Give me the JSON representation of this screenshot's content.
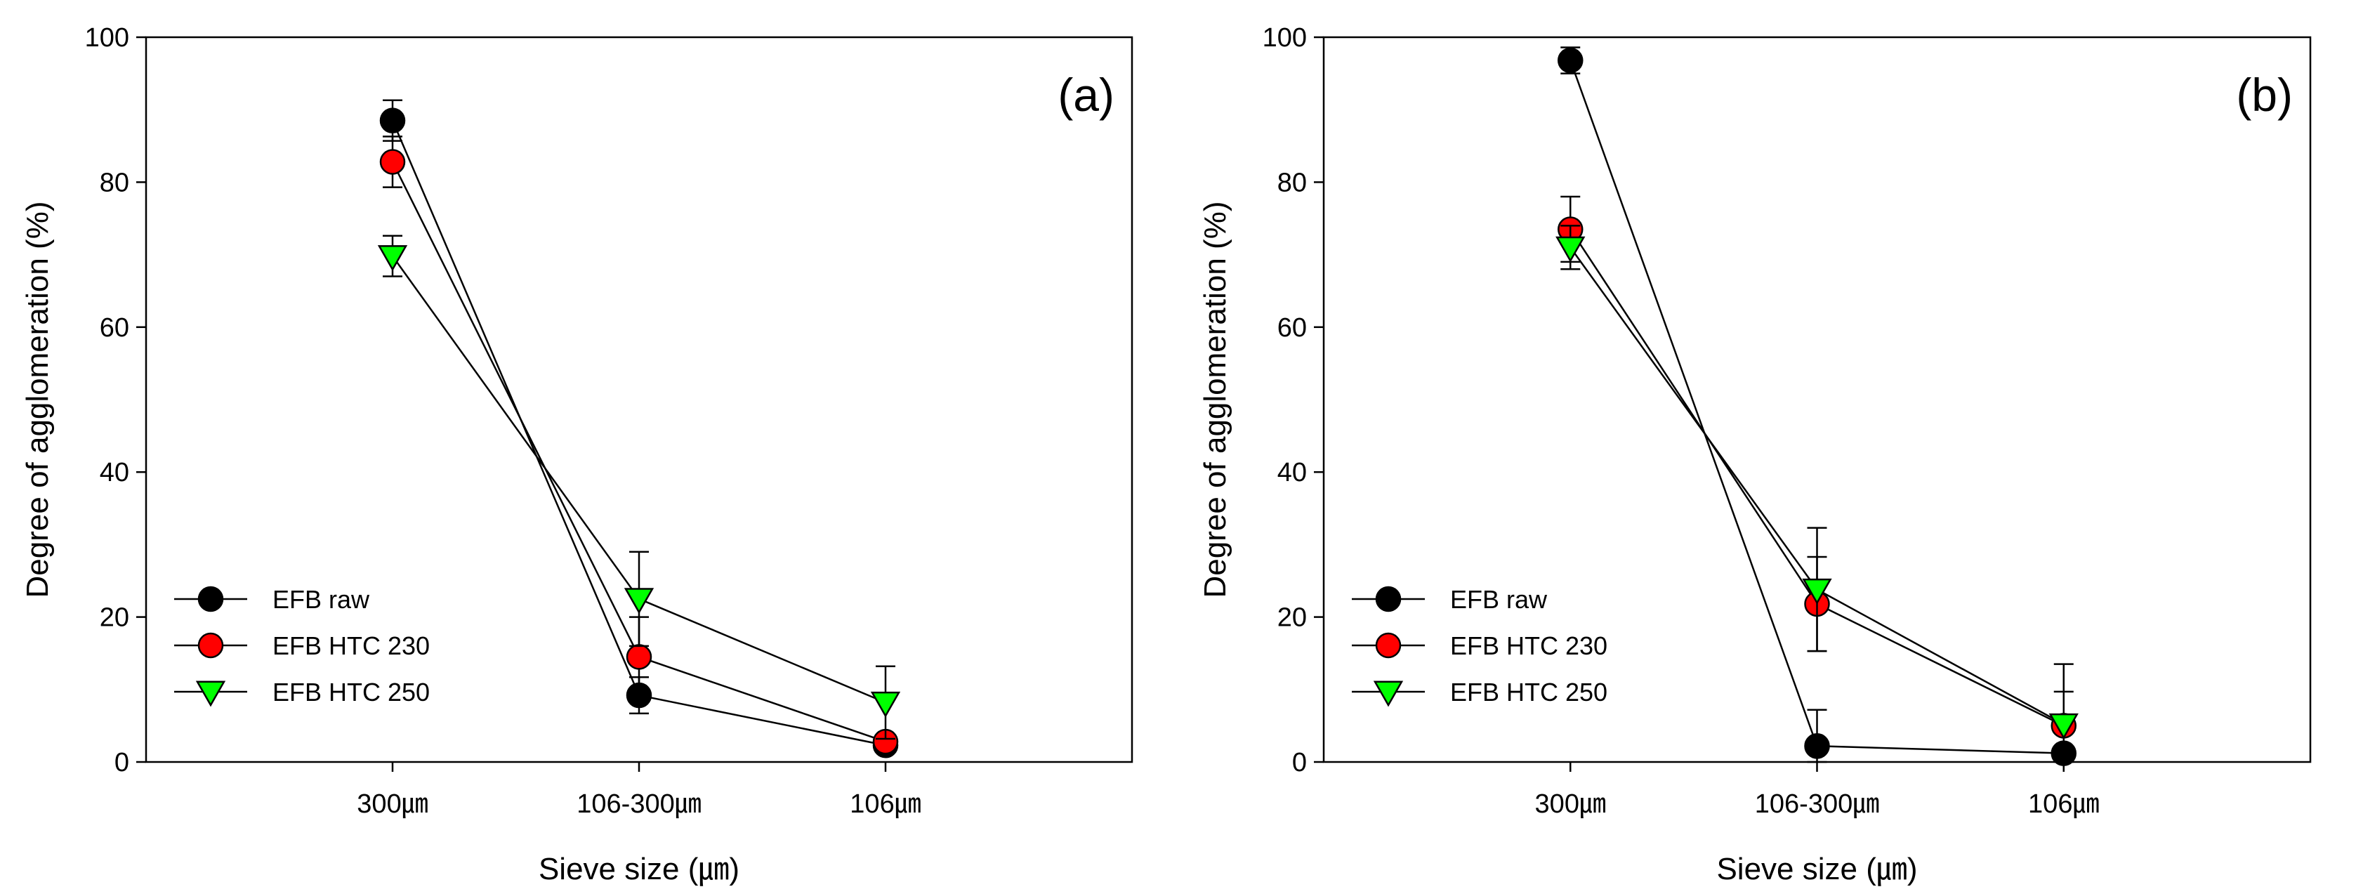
{
  "chart_data": [
    {
      "type": "line",
      "panel_label": "(a)",
      "xlabel": "Sieve size (㎛)",
      "ylabel": "Degree of agglomeration (%)",
      "ylim": [
        0,
        100
      ],
      "yticks": [
        "0",
        "20",
        "40",
        "60",
        "80",
        "100"
      ],
      "categories": [
        "300㎛",
        "106-300㎛",
        "106㎛"
      ],
      "legend_position": "bottom-left",
      "series": [
        {
          "name": "EFB raw",
          "marker": "circle",
          "color": "#000000",
          "values": [
            88.5,
            9.2,
            2.3
          ],
          "errors": [
            2.8,
            2.5,
            0.8
          ]
        },
        {
          "name": "EFB HTC 230",
          "marker": "circle",
          "color": "#ff0000",
          "values": [
            82.8,
            14.5,
            2.8
          ],
          "errors": [
            3.5,
            5.5,
            1.0
          ]
        },
        {
          "name": "EFB HTC 250",
          "marker": "triangle-down",
          "color": "#00ff00",
          "values": [
            69.8,
            22.5,
            8.2
          ],
          "errors": [
            2.8,
            6.5,
            5.0
          ]
        }
      ]
    },
    {
      "type": "line",
      "panel_label": "(b)",
      "xlabel": "Sieve size (㎛)",
      "ylabel": "Degree of agglomeration (%)",
      "ylim": [
        0,
        100
      ],
      "yticks": [
        "0",
        "20",
        "40",
        "60",
        "80",
        "100"
      ],
      "categories": [
        "300㎛",
        "106-300㎛",
        "106㎛"
      ],
      "legend_position": "bottom-left",
      "series": [
        {
          "name": "EFB raw",
          "marker": "circle",
          "color": "#000000",
          "values": [
            96.8,
            2.2,
            1.2
          ],
          "errors": [
            1.8,
            5.0,
            0.5
          ]
        },
        {
          "name": "EFB HTC 230",
          "marker": "circle",
          "color": "#ff0000",
          "values": [
            73.5,
            21.8,
            5.0
          ],
          "errors": [
            4.5,
            6.5,
            8.5
          ]
        },
        {
          "name": "EFB HTC 250",
          "marker": "triangle-down",
          "color": "#00ff00",
          "values": [
            71.0,
            23.8,
            5.2
          ],
          "errors": [
            3.0,
            8.5,
            4.5
          ]
        }
      ]
    }
  ]
}
